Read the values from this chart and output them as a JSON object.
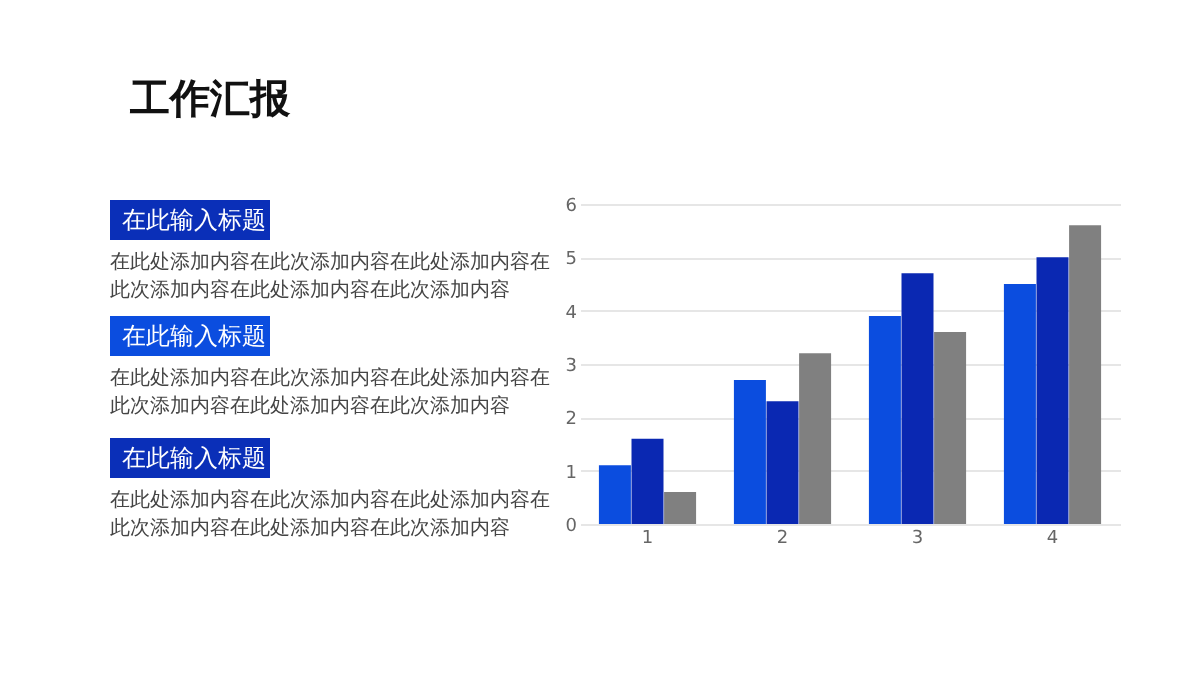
{
  "chart_data": {
    "type": "bar",
    "title": "工作汇报",
    "categories": [
      "1",
      "2",
      "3",
      "4"
    ],
    "series": [
      {
        "color": "#0b4ddf",
        "values": [
          1.1,
          2.7,
          3.9,
          4.5
        ]
      },
      {
        "color": "#0a28b2",
        "values": [
          1.6,
          2.3,
          4.7,
          5.0
        ]
      },
      {
        "color": "#808080",
        "values": [
          0.6,
          3.2,
          3.6,
          5.6
        ]
      }
    ],
    "ylim": [
      0,
      6
    ],
    "yticks": [
      0,
      1,
      2,
      3,
      4,
      5,
      6
    ],
    "grid": "y",
    "legend": false,
    "annotations": [
      "在此输入标题",
      "在此处添加内容在此次添加内容在此处添加内容在此次添加内容在此处添加内容在此次添加内容",
      "在此输入标题",
      "在此处添加内容在此次添加内容在此处添加内容在此次添加内容在此处添加内容在此次添加内容",
      "在此输入标题",
      "在此处添加内容在此次添加内容在此处添加内容在此次添加内容在此处添加内容在此次添加内容"
    ]
  }
}
